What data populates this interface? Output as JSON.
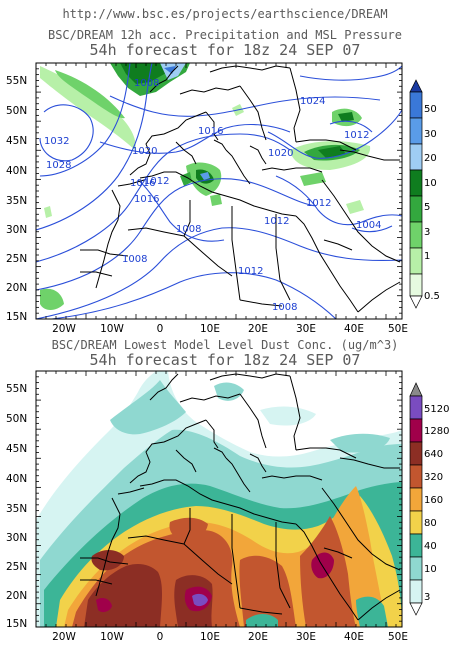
{
  "header": {
    "url": "http://www.bsc.es/projects/earthscience/DREAM"
  },
  "top_map": {
    "title_line1": "BSC/DREAM 12h acc. Precipitation and MSL Pressure",
    "title_line2": "54h forecast for 18z 24 SEP 07",
    "lat_labels": [
      "55N",
      "50N",
      "45N",
      "40N",
      "35N",
      "30N",
      "25N",
      "20N",
      "15N"
    ],
    "lon_labels": [
      "20W",
      "10W",
      "0",
      "10E",
      "20E",
      "30E",
      "40E",
      "50E"
    ],
    "isobar_labels": [
      "1008",
      "1032",
      "1028",
      "1020",
      "1016",
      "1012",
      "1016",
      "1024",
      "1020",
      "1012",
      "1016",
      "1008",
      "1012",
      "1012",
      "1004",
      "1008",
      "1012",
      "1008"
    ],
    "colorbar": {
      "levels": [
        "50",
        "30",
        "20",
        "10",
        "5",
        "3",
        "1",
        "0.5"
      ],
      "colors": [
        "#3a78d8",
        "#5a9ce8",
        "#9fcdf3",
        "#0f7d1f",
        "#33a83e",
        "#6fd26a",
        "#b7f0a8",
        "#e6fbe0"
      ]
    }
  },
  "bottom_map": {
    "title_line1": "BSC/DREAM Lowest Model Level Dust Conc. (ug/m^3)",
    "title_line2": "54h forecast for 18z 24 SEP 07",
    "lat_labels": [
      "55N",
      "50N",
      "45N",
      "40N",
      "35N",
      "30N",
      "25N",
      "20N",
      "15N"
    ],
    "lon_labels": [
      "20W",
      "10W",
      "0",
      "10E",
      "20E",
      "30E",
      "40E",
      "50E"
    ],
    "colorbar": {
      "levels": [
        "5120",
        "1280",
        "640",
        "320",
        "160",
        "80",
        "40",
        "10",
        "3"
      ],
      "colors": [
        "#8a8a8a",
        "#7a4cc0",
        "#a0004a",
        "#8c2e24",
        "#c2562f",
        "#f2a63a",
        "#f2d24a",
        "#3cb597",
        "#8fd8d0",
        "#d6f4f2"
      ]
    }
  }
}
